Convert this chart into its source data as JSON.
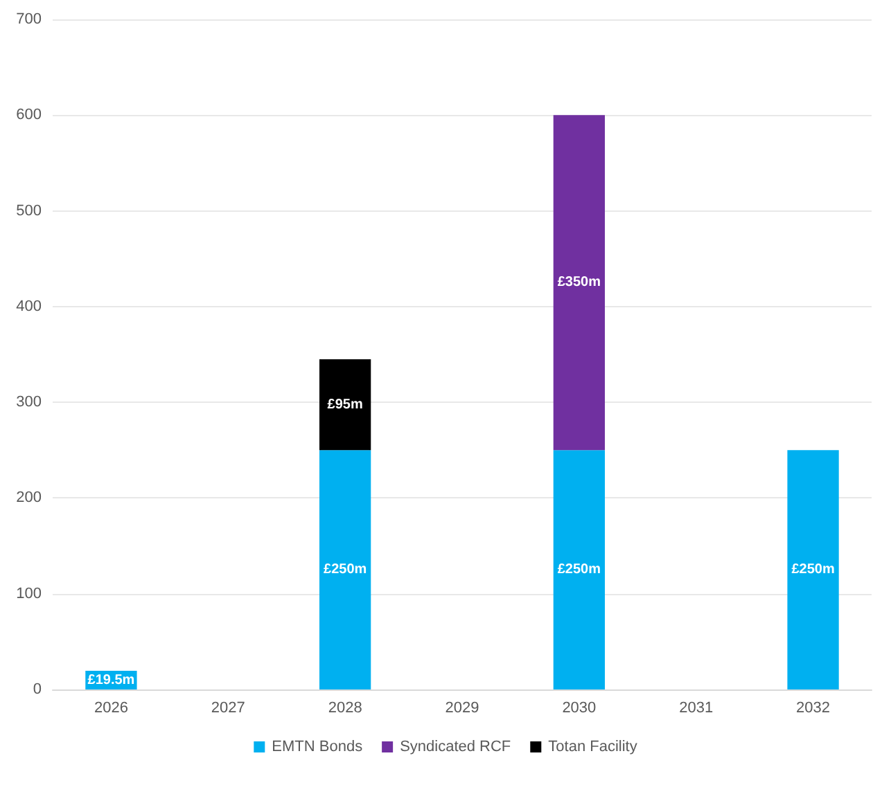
{
  "chart_data": {
    "type": "bar",
    "stacked": true,
    "categories": [
      "2026",
      "2027",
      "2028",
      "2029",
      "2030",
      "2031",
      "2032"
    ],
    "series": [
      {
        "name": "EMTN Bonds",
        "color": "#00b0f0",
        "values": [
          19.5,
          null,
          250,
          null,
          250,
          null,
          250
        ],
        "value_labels": [
          "£19.5m",
          null,
          "£250m",
          null,
          "£250m",
          null,
          "£250m"
        ]
      },
      {
        "name": "Syndicated RCF",
        "color": "#7030a0",
        "values": [
          null,
          null,
          null,
          null,
          350,
          null,
          null
        ],
        "value_labels": [
          null,
          null,
          null,
          null,
          "£350m",
          null,
          null
        ]
      },
      {
        "name": "Totan Facility",
        "color": "#000000",
        "values": [
          null,
          null,
          95,
          null,
          null,
          null,
          null
        ],
        "value_labels": [
          null,
          null,
          "£95m",
          null,
          null,
          null,
          null
        ]
      }
    ],
    "ylim": [
      0,
      700
    ],
    "yticks": [
      0,
      100,
      200,
      300,
      400,
      500,
      600,
      700
    ],
    "grid": "y",
    "legend": "bottom"
  }
}
